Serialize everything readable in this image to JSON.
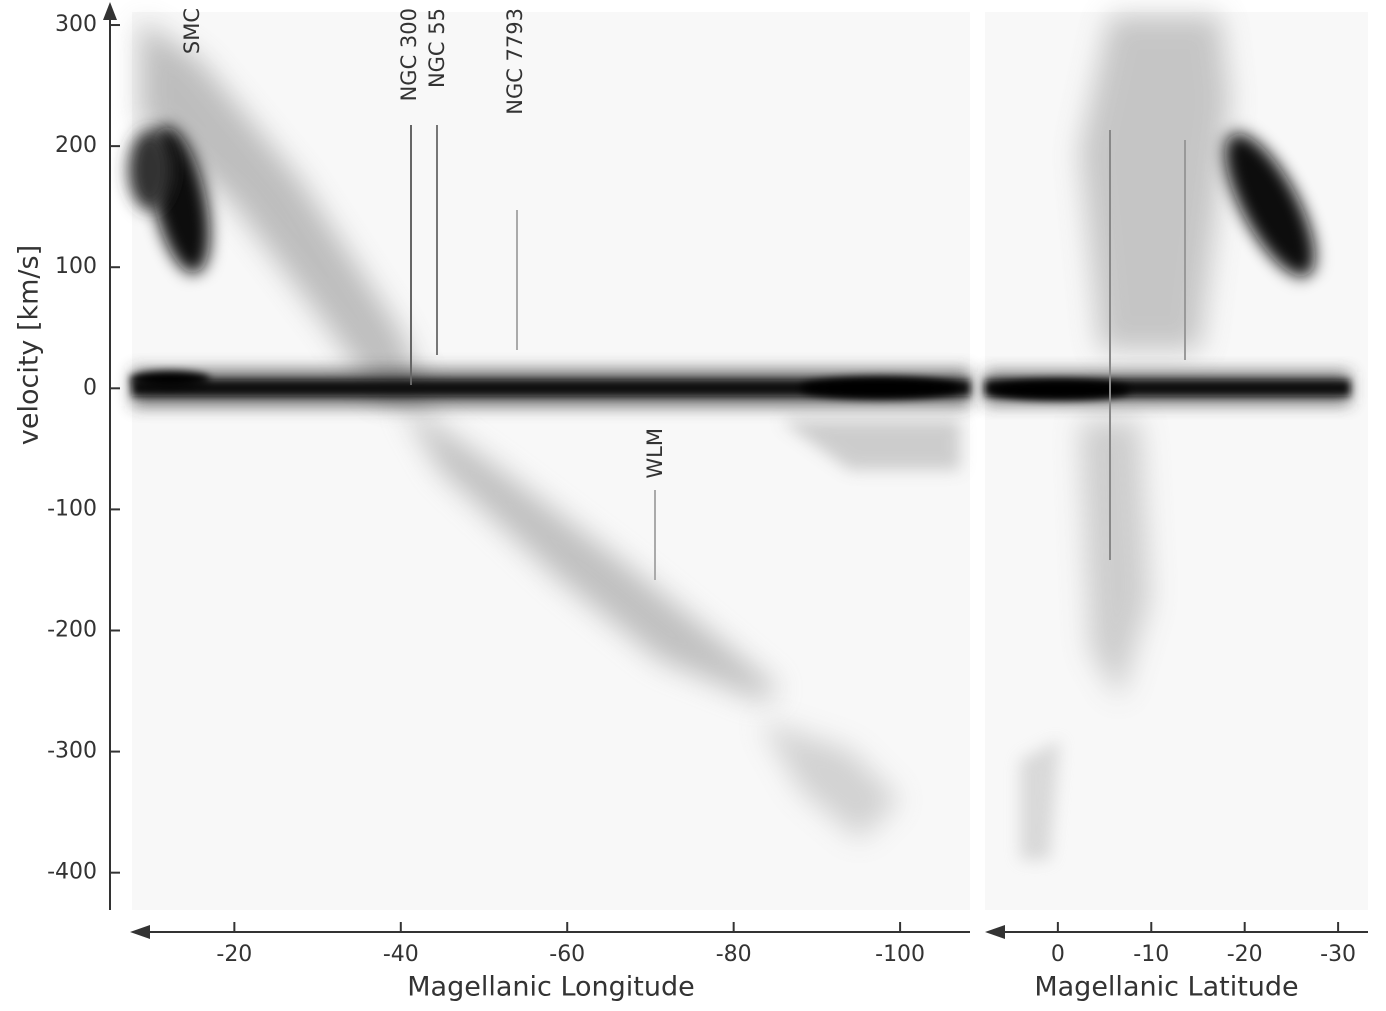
{
  "chart_data": [
    {
      "type": "image",
      "ylabel": "velocity [km/s]",
      "xlabel": "Magellanic Longitude",
      "ylim": [
        -430,
        312
      ],
      "yticks": [
        -400,
        -300,
        -200,
        -100,
        0,
        100,
        200,
        300
      ],
      "xlim": [
        -7.7,
        -108.4
      ],
      "xticks": [
        -20,
        -40,
        -60,
        -80,
        -100
      ],
      "annotations": [
        "SMC",
        "NGC 300",
        "NGC 55",
        "NGC 7793",
        "WLM"
      ]
    },
    {
      "type": "image",
      "xlabel": "Magellanic Latitude",
      "ylim": [
        -430,
        312
      ],
      "xlim": [
        7.8,
        -33.2
      ],
      "xticks": [
        0,
        -10,
        -20,
        -30
      ]
    }
  ]
}
